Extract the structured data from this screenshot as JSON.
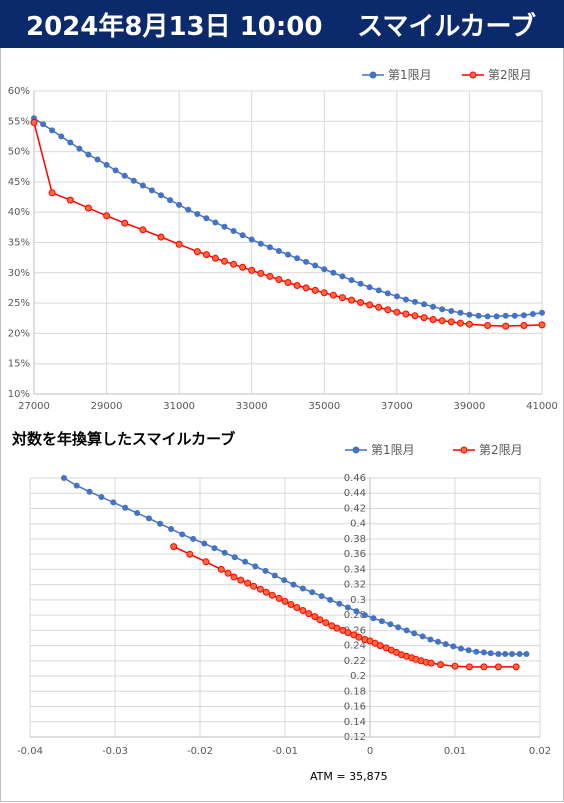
{
  "header": {
    "datetime": "2024年8月13日 10:00",
    "title": "スマイルカーブ"
  },
  "colors": {
    "series1": "#4472c4",
    "series2": "#ff0000",
    "header_bg": "#0b2a6b"
  },
  "chart_data": [
    {
      "type": "line",
      "title": "",
      "legend": "top-right",
      "ylim": [
        0.1,
        0.6
      ],
      "xlim": [
        27000,
        41000
      ],
      "xticks": [
        "27000",
        "29000",
        "31000",
        "33000",
        "35000",
        "37000",
        "39000",
        "41000"
      ],
      "yticks": [
        "10%",
        "15%",
        "20%",
        "25%",
        "30%",
        "35%",
        "40%",
        "45%",
        "50%",
        "55%",
        "60%"
      ],
      "grid": true,
      "series": [
        {
          "name": "第1限月",
          "x": [
            27000,
            27250,
            27500,
            27750,
            28000,
            28250,
            28500,
            28750,
            29000,
            29250,
            29500,
            29750,
            30000,
            30250,
            30500,
            30750,
            31000,
            31250,
            31500,
            31750,
            32000,
            32250,
            32500,
            32750,
            33000,
            33250,
            33500,
            33750,
            34000,
            34250,
            34500,
            34750,
            35000,
            35250,
            35500,
            35750,
            36000,
            36250,
            36500,
            36750,
            37000,
            37250,
            37500,
            37750,
            38000,
            38250,
            38500,
            38750,
            39000,
            39250,
            39500,
            39750,
            40000,
            40250,
            40500,
            40750,
            41000
          ],
          "values": [
            0.555,
            0.545,
            0.535,
            0.525,
            0.515,
            0.505,
            0.495,
            0.487,
            0.478,
            0.469,
            0.46,
            0.452,
            0.444,
            0.436,
            0.428,
            0.42,
            0.412,
            0.404,
            0.397,
            0.39,
            0.383,
            0.376,
            0.369,
            0.362,
            0.355,
            0.348,
            0.342,
            0.336,
            0.33,
            0.324,
            0.318,
            0.312,
            0.306,
            0.3,
            0.294,
            0.288,
            0.282,
            0.276,
            0.271,
            0.266,
            0.261,
            0.256,
            0.252,
            0.248,
            0.244,
            0.24,
            0.237,
            0.234,
            0.231,
            0.229,
            0.228,
            0.228,
            0.229,
            0.229,
            0.23,
            0.232,
            0.234
          ]
        },
        {
          "name": "第2限月",
          "x": [
            27000,
            27500,
            28000,
            28500,
            29000,
            29500,
            30000,
            30500,
            31000,
            31500,
            31750,
            32000,
            32250,
            32500,
            32750,
            33000,
            33250,
            33500,
            33750,
            34000,
            34250,
            34500,
            34750,
            35000,
            35250,
            35500,
            35750,
            36000,
            36250,
            36500,
            36750,
            37000,
            37250,
            37500,
            37750,
            38000,
            38250,
            38500,
            38750,
            39000,
            39500,
            40000,
            40500,
            41000
          ],
          "values": [
            0.548,
            0.432,
            0.42,
            0.407,
            0.394,
            0.382,
            0.371,
            0.359,
            0.347,
            0.335,
            0.33,
            0.324,
            0.319,
            0.314,
            0.309,
            0.304,
            0.299,
            0.294,
            0.289,
            0.284,
            0.279,
            0.275,
            0.271,
            0.267,
            0.263,
            0.259,
            0.255,
            0.251,
            0.247,
            0.243,
            0.239,
            0.235,
            0.232,
            0.229,
            0.226,
            0.223,
            0.221,
            0.219,
            0.217,
            0.215,
            0.213,
            0.212,
            0.213,
            0.214
          ]
        }
      ]
    },
    {
      "type": "line",
      "title": "対数を年換算したスマイルカーブ",
      "legend": "top-right",
      "xlim": [
        -0.04,
        0.02
      ],
      "ylim": [
        0.12,
        0.46
      ],
      "xticks": [
        "-0.04",
        "-0.03",
        "-0.02",
        "-0.01",
        "0",
        "0.01",
        "0.02"
      ],
      "yticks": [
        "0.12",
        "0.14",
        "0.16",
        "0.18",
        "0.2",
        "0.22",
        "0.24",
        "0.26",
        "0.28",
        "0.3",
        "0.32",
        "0.34",
        "0.36",
        "0.38",
        "0.4",
        "0.42",
        "0.44",
        "0.46"
      ],
      "grid": true,
      "annotation": "ATM = 35,875",
      "series": [
        {
          "name": "第1限月",
          "x": [
            -0.036,
            -0.0345,
            -0.033,
            -0.0316,
            -0.0302,
            -0.0288,
            -0.0274,
            -0.026,
            -0.0247,
            -0.0234,
            -0.0221,
            -0.0208,
            -0.0195,
            -0.0183,
            -0.0171,
            -0.0159,
            -0.0147,
            -0.0135,
            -0.0123,
            -0.0112,
            -0.0101,
            -0.009,
            -0.0079,
            -0.0068,
            -0.0057,
            -0.0047,
            -0.0036,
            -0.0026,
            -0.0016,
            -0.0006,
            0.0004,
            0.0014,
            0.0024,
            0.0033,
            0.0043,
            0.0052,
            0.0062,
            0.0071,
            0.008,
            0.0089,
            0.0098,
            0.0107,
            0.0116,
            0.0125,
            0.0134,
            0.0142,
            0.0151,
            0.0159,
            0.0167,
            0.0176,
            0.0184
          ],
          "values": [
            0.46,
            0.45,
            0.442,
            0.435,
            0.428,
            0.421,
            0.414,
            0.407,
            0.4,
            0.393,
            0.386,
            0.38,
            0.374,
            0.368,
            0.362,
            0.356,
            0.35,
            0.344,
            0.338,
            0.332,
            0.326,
            0.32,
            0.315,
            0.31,
            0.305,
            0.3,
            0.295,
            0.29,
            0.285,
            0.28,
            0.276,
            0.272,
            0.268,
            0.264,
            0.26,
            0.256,
            0.252,
            0.248,
            0.245,
            0.242,
            0.239,
            0.236,
            0.234,
            0.232,
            0.231,
            0.23,
            0.229,
            0.229,
            0.229,
            0.229,
            0.229
          ]
        },
        {
          "name": "第2限月",
          "x": [
            -0.0231,
            -0.0212,
            -0.0193,
            -0.0175,
            -0.0167,
            -0.016,
            -0.0152,
            -0.0144,
            -0.0137,
            -0.0129,
            -0.0122,
            -0.0115,
            -0.0107,
            -0.01,
            -0.0093,
            -0.0086,
            -0.0079,
            -0.0072,
            -0.0065,
            -0.0059,
            -0.0052,
            -0.0045,
            -0.0039,
            -0.0032,
            -0.0026,
            -0.0019,
            -0.0013,
            -0.0006,
            0.0,
            0.0006,
            0.0012,
            0.0019,
            0.0025,
            0.0031,
            0.0037,
            0.0043,
            0.0049,
            0.0054,
            0.006,
            0.0066,
            0.0072,
            0.0083,
            0.01,
            0.0117,
            0.0134,
            0.0151,
            0.0172
          ],
          "values": [
            0.37,
            0.36,
            0.35,
            0.34,
            0.335,
            0.33,
            0.326,
            0.322,
            0.318,
            0.314,
            0.31,
            0.306,
            0.302,
            0.298,
            0.294,
            0.29,
            0.286,
            0.282,
            0.278,
            0.274,
            0.27,
            0.266,
            0.263,
            0.26,
            0.257,
            0.254,
            0.251,
            0.248,
            0.246,
            0.243,
            0.24,
            0.237,
            0.234,
            0.231,
            0.228,
            0.226,
            0.224,
            0.222,
            0.22,
            0.218,
            0.217,
            0.215,
            0.213,
            0.212,
            0.212,
            0.212,
            0.212
          ]
        }
      ]
    }
  ]
}
